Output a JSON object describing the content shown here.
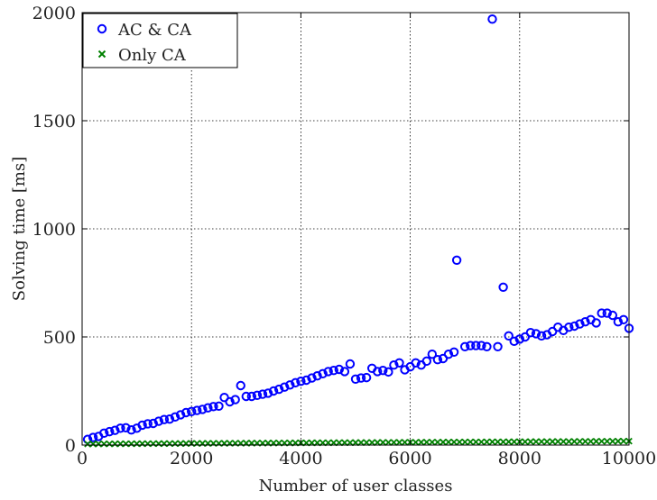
{
  "chart_data": {
    "type": "scatter",
    "xlabel": "Number of user classes",
    "ylabel": "Solving time [ms]",
    "xlim": [
      0,
      10000
    ],
    "ylim": [
      0,
      2000
    ],
    "xticks": [
      "0",
      "2000",
      "4000",
      "6000",
      "8000",
      "10000"
    ],
    "yticks": [
      "0",
      "500",
      "1000",
      "1500",
      "2000"
    ],
    "grid": true,
    "legend_position": "top-left",
    "series": [
      {
        "name": "AC & CA",
        "marker": "circle",
        "color": "#0000ff",
        "points": [
          [
            100,
            26
          ],
          [
            200,
            35
          ],
          [
            300,
            40
          ],
          [
            400,
            55
          ],
          [
            500,
            62
          ],
          [
            600,
            68
          ],
          [
            700,
            78
          ],
          [
            800,
            80
          ],
          [
            900,
            70
          ],
          [
            1000,
            78
          ],
          [
            1100,
            92
          ],
          [
            1200,
            98
          ],
          [
            1300,
            100
          ],
          [
            1400,
            110
          ],
          [
            1500,
            118
          ],
          [
            1600,
            120
          ],
          [
            1700,
            130
          ],
          [
            1800,
            140
          ],
          [
            1900,
            150
          ],
          [
            2000,
            155
          ],
          [
            2100,
            160
          ],
          [
            2200,
            165
          ],
          [
            2300,
            172
          ],
          [
            2400,
            178
          ],
          [
            2500,
            180
          ],
          [
            2600,
            220
          ],
          [
            2700,
            200
          ],
          [
            2800,
            210
          ],
          [
            2900,
            275
          ],
          [
            3000,
            225
          ],
          [
            3100,
            225
          ],
          [
            3200,
            230
          ],
          [
            3300,
            235
          ],
          [
            3400,
            240
          ],
          [
            3500,
            250
          ],
          [
            3600,
            258
          ],
          [
            3700,
            268
          ],
          [
            3800,
            278
          ],
          [
            3900,
            288
          ],
          [
            4000,
            295
          ],
          [
            4100,
            300
          ],
          [
            4200,
            310
          ],
          [
            4300,
            320
          ],
          [
            4400,
            330
          ],
          [
            4500,
            340
          ],
          [
            4600,
            345
          ],
          [
            4700,
            350
          ],
          [
            4800,
            340
          ],
          [
            4900,
            375
          ],
          [
            5000,
            305
          ],
          [
            5100,
            310
          ],
          [
            5200,
            312
          ],
          [
            5300,
            355
          ],
          [
            5400,
            340
          ],
          [
            5500,
            345
          ],
          [
            5600,
            338
          ],
          [
            5700,
            370
          ],
          [
            5800,
            380
          ],
          [
            5900,
            348
          ],
          [
            6000,
            362
          ],
          [
            6100,
            380
          ],
          [
            6200,
            370
          ],
          [
            6300,
            388
          ],
          [
            6400,
            420
          ],
          [
            6500,
            395
          ],
          [
            6600,
            400
          ],
          [
            6700,
            420
          ],
          [
            6800,
            430
          ],
          [
            6850,
            855
          ],
          [
            7000,
            455
          ],
          [
            7100,
            460
          ],
          [
            7200,
            460
          ],
          [
            7300,
            460
          ],
          [
            7400,
            455
          ],
          [
            7500,
            1970
          ],
          [
            7600,
            455
          ],
          [
            7700,
            730
          ],
          [
            7800,
            505
          ],
          [
            7900,
            480
          ],
          [
            8000,
            490
          ],
          [
            8100,
            500
          ],
          [
            8200,
            520
          ],
          [
            8300,
            515
          ],
          [
            8400,
            505
          ],
          [
            8500,
            510
          ],
          [
            8600,
            525
          ],
          [
            8700,
            545
          ],
          [
            8800,
            530
          ],
          [
            8900,
            545
          ],
          [
            9000,
            550
          ],
          [
            9100,
            560
          ],
          [
            9200,
            570
          ],
          [
            9300,
            580
          ],
          [
            9400,
            565
          ],
          [
            9500,
            610
          ],
          [
            9600,
            610
          ],
          [
            9700,
            600
          ],
          [
            9800,
            570
          ],
          [
            9900,
            580
          ],
          [
            10000,
            540
          ]
        ]
      },
      {
        "name": "Only CA",
        "marker": "x",
        "color": "#008000",
        "x_start": 100,
        "x_end": 10000,
        "x_step": 100,
        "y_start": 5,
        "y_end": 18
      }
    ]
  }
}
